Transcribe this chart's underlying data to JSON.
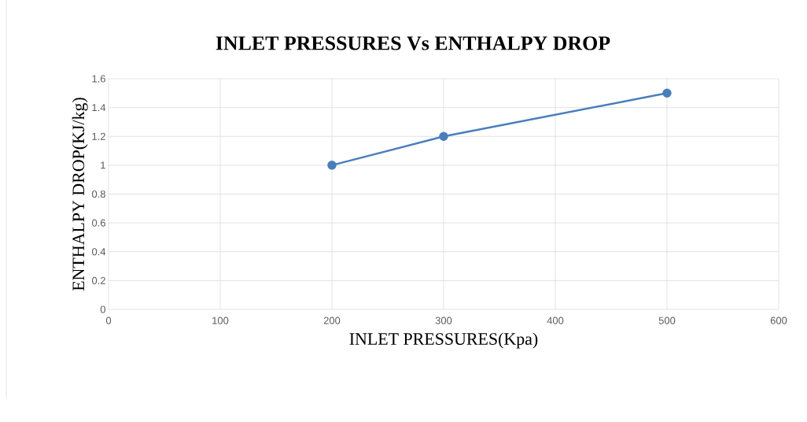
{
  "chart_data": {
    "type": "line",
    "title": "INLET PRESSURES Vs ENTHALPY DROP",
    "xlabel": "INLET PRESSURES(Kpa)",
    "ylabel": "ENTHALPY DROP(KJ/kg)",
    "x": [
      200,
      300,
      500
    ],
    "values": [
      1,
      1.2,
      1.5
    ],
    "color": "#4a7ebb",
    "xlim": [
      0,
      600
    ],
    "ylim": [
      0,
      1.6
    ],
    "xticks": [
      0,
      100,
      200,
      300,
      400,
      500,
      600
    ],
    "yticks": [
      0,
      0.2,
      0.4,
      0.6,
      0.8,
      1,
      1.2,
      1.4,
      1.6
    ],
    "grid": true,
    "marker": "circle"
  }
}
